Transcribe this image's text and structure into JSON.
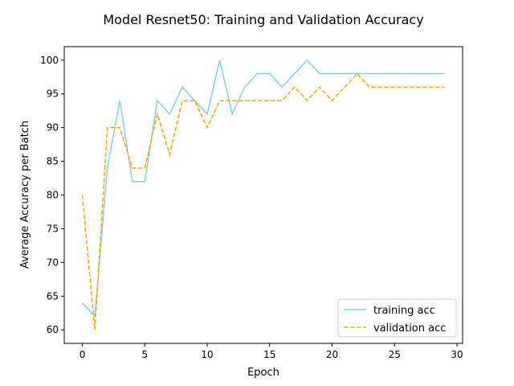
{
  "chart_data": {
    "type": "line",
    "title": "Model Resnet50: Training and Validation Accuracy",
    "xlabel": "Epoch",
    "ylabel": "Average Accuracy per Batch",
    "xlim": [
      -1.45,
      30.45
    ],
    "ylim": [
      58.0,
      102.0
    ],
    "xticks": [
      0,
      5,
      10,
      15,
      20,
      25,
      30
    ],
    "yticks": [
      60,
      65,
      70,
      75,
      80,
      85,
      90,
      95,
      100
    ],
    "grid": false,
    "legend_position": "bottom-right",
    "x": [
      0,
      1,
      2,
      3,
      4,
      5,
      6,
      7,
      8,
      9,
      10,
      11,
      12,
      13,
      14,
      15,
      16,
      17,
      18,
      19,
      20,
      21,
      22,
      23,
      24,
      25,
      26,
      27,
      28,
      29
    ],
    "series": [
      {
        "name": "training acc",
        "color": "#87ceeb",
        "style": "solid",
        "values": [
          64,
          62,
          84,
          94,
          82,
          82,
          94,
          92,
          96,
          94,
          92,
          100,
          92,
          96,
          98,
          98,
          96,
          98,
          100,
          98,
          98,
          98,
          98,
          98,
          98,
          98,
          98,
          98,
          98,
          98
        ]
      },
      {
        "name": "validation acc",
        "color": "#ffa500",
        "style": "dashed",
        "values": [
          80,
          60,
          90,
          90,
          84,
          84,
          92,
          86,
          94,
          94,
          90,
          94,
          94,
          94,
          94,
          94,
          94,
          96,
          94,
          96,
          94,
          96,
          98,
          96,
          96,
          96,
          96,
          96,
          96,
          96
        ]
      }
    ]
  }
}
